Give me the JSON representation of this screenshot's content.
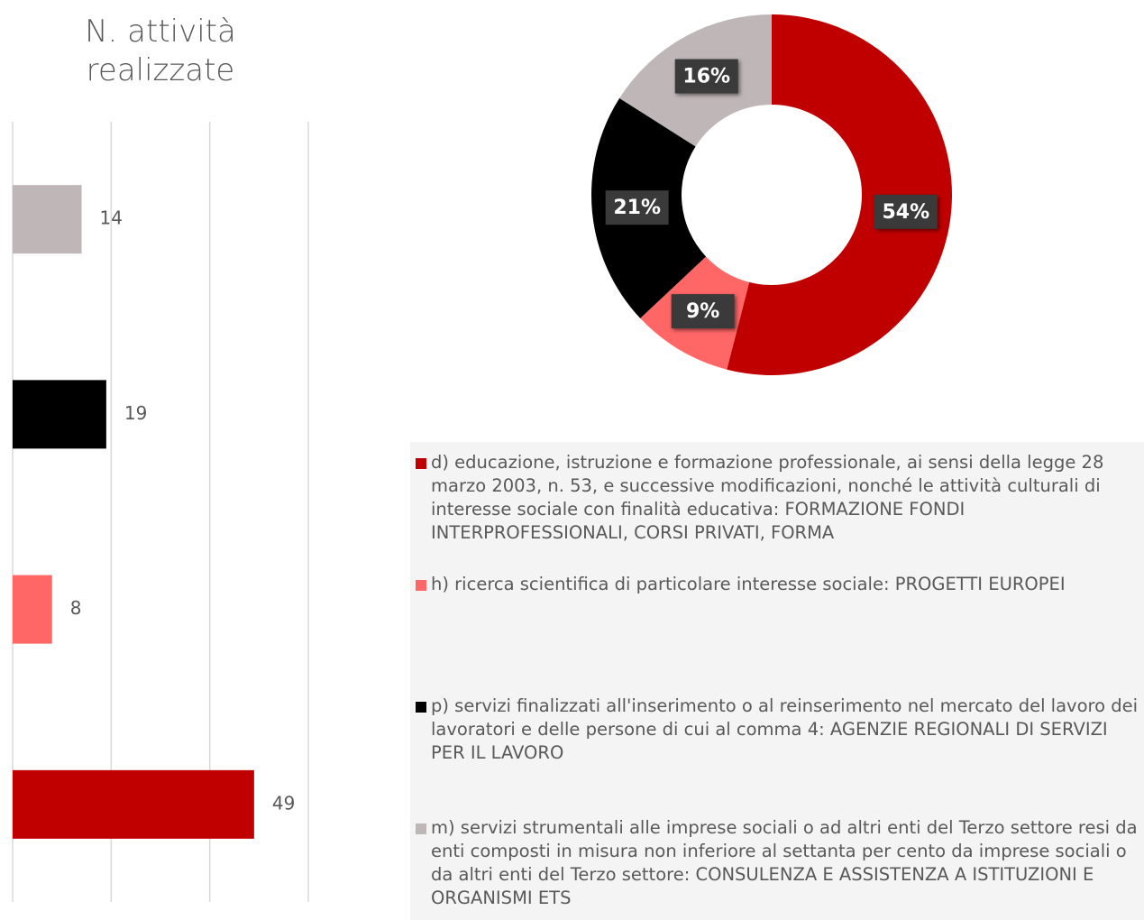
{
  "chart_data": [
    {
      "type": "bar",
      "orientation": "horizontal",
      "title": "N. attività realizzate",
      "categories": [
        null,
        null,
        null,
        null
      ],
      "values": [
        14,
        19,
        8,
        49
      ],
      "colors": [
        "#bfb7b7",
        "#000000",
        "#ff6666",
        "#c00000"
      ],
      "xlim": [
        0,
        60
      ],
      "xticks": [
        0,
        20,
        40,
        60
      ],
      "grid": true
    },
    {
      "type": "donut",
      "categories": [
        "d) educazione, istruzione e formazione professionale, ai sensi della legge 28 marzo 2003, n. 53, e successive modificazioni, nonché le attività culturali di interesse sociale con finalità educativa: FORMAZIONE FONDI INTERPROFESSIONALI, CORSI PRIVATI, FORMA",
        "h) ricerca scientifica di particolare interesse sociale: PROGETTI EUROPEI",
        " p) servizi finalizzati all'inserimento o al reinserimento nel mercato del lavoro dei lavoratori e delle persone di cui al comma 4: AGENZIE REGIONALI DI SERVIZI PER IL LAVORO",
        "m) servizi strumentali alle imprese sociali o ad altri enti del Terzo settore resi da enti composti in misura non inferiore al settanta per cento da imprese sociali o da altri enti del Terzo settore: CONSULENZA E ASSISTENZA A ISTITUZIONI E ORGANISMI ETS"
      ],
      "values": [
        54,
        9,
        21,
        16
      ],
      "value_labels": [
        "54%",
        "9%",
        "21%",
        "16%"
      ],
      "colors": [
        "#c00000",
        "#ff6666",
        "#000000",
        "#bfb7b7"
      ]
    }
  ]
}
